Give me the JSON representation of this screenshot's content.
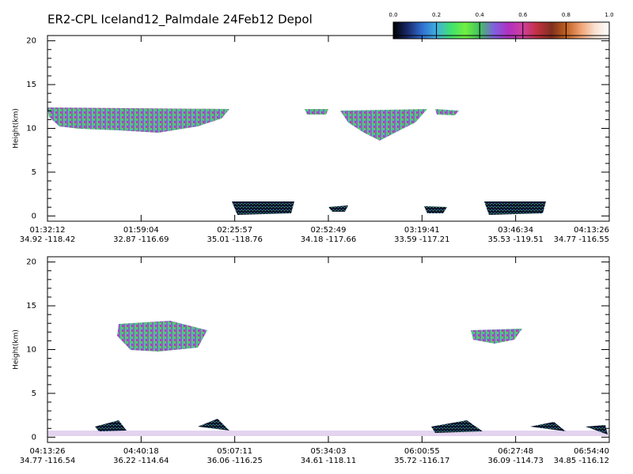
{
  "title": "ER2-CPL Iceland12_Palmdale 24Feb12 Depol",
  "colorbar": {
    "lim": [
      0,
      1
    ],
    "ticks": [
      {
        "value": 0,
        "label": "0.0"
      },
      {
        "value": 0.2,
        "label": "0.2"
      },
      {
        "value": 0.4,
        "label": "0.4"
      },
      {
        "value": 0.6,
        "label": "0.6"
      },
      {
        "value": 0.8,
        "label": "0.8"
      },
      {
        "value": 1,
        "label": "1.0"
      }
    ],
    "colors": [
      "#000000",
      "#1a2a6a",
      "#2f6fd0",
      "#40b0e0",
      "#40e070",
      "#70f040",
      "#40c060",
      "#8060e0",
      "#b030c0",
      "#d040a0",
      "#c03040",
      "#803020",
      "#c06020",
      "#f0a070",
      "#f8e0d0",
      "#ffffff"
    ]
  },
  "chart_data": [
    {
      "type": "image",
      "ylabel": "Height(km)",
      "ylim": [
        -0.6,
        20.6
      ],
      "yticks": [
        0,
        5,
        10,
        15,
        20
      ],
      "x_tick_labels": [
        [
          "01:32:12",
          "34.92 -118.42"
        ],
        [
          "01:59:04",
          "32.87 -116.69"
        ],
        [
          "02:25:57",
          "35.01 -118.76"
        ],
        [
          "02:52:49",
          "34.18 -117.66"
        ],
        [
          "03:19:41",
          "33.59 -117.21"
        ],
        [
          "03:46:34",
          "35.53 -119.51"
        ],
        [
          "04:13:26",
          "34.77 -116.55"
        ]
      ]
    },
    {
      "type": "image",
      "ylabel": "Height(km)",
      "ylim": [
        -0.6,
        20.6
      ],
      "yticks": [
        0,
        5,
        10,
        15,
        20
      ],
      "x_tick_labels": [
        [
          "04:13:26",
          "34.77 -116.54"
        ],
        [
          "04:40:18",
          "36.22 -114.64"
        ],
        [
          "05:07:11",
          "36.06 -116.25"
        ],
        [
          "05:34:03",
          "34.61 -118.11"
        ],
        [
          "06:00:55",
          "35.72 -116.17"
        ],
        [
          "06:27:48",
          "36.09 -114.73"
        ],
        [
          "06:54:40",
          "34.85 -116.12"
        ]
      ]
    }
  ]
}
